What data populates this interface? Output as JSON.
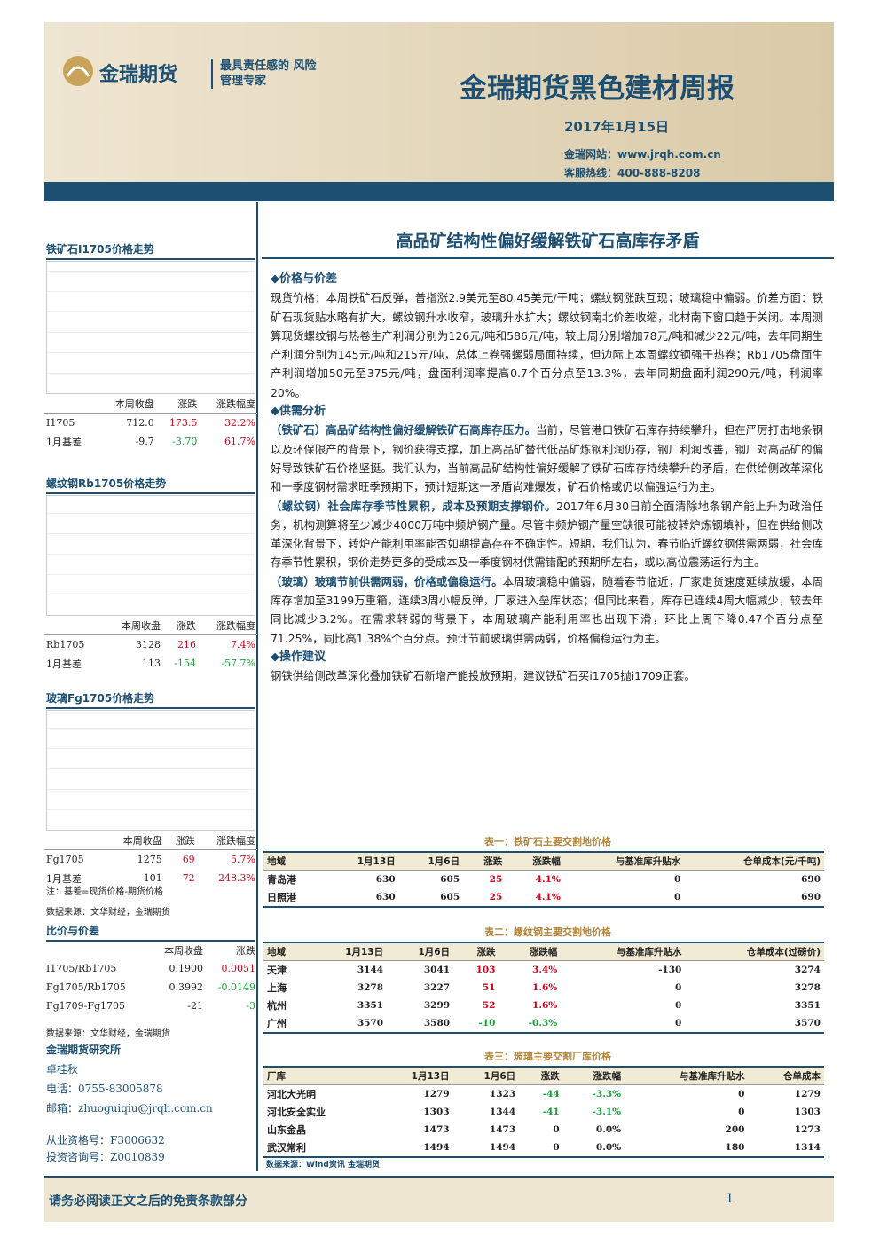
{
  "header": {
    "logo": "金瑞期货",
    "slogan": "最具责任感的 风险管理专家",
    "title": "金瑞期货黑色建材周报",
    "date": "2017年1月15日",
    "website": "金瑞网站：www.jrqh.com.cn",
    "hotline": "客服热线：400-888-8208"
  },
  "sidebar": {
    "panels": [
      {
        "title": "铁矿石I1705价格走势",
        "header": [
          "本周收盘",
          "涨跌",
          "涨跌幅度"
        ],
        "rows": [
          [
            "I1705",
            "712.0",
            "173.5",
            "32.2%"
          ],
          [
            "1月基差",
            "-9.7",
            "-3.70",
            "61.7%"
          ]
        ]
      },
      {
        "title": "螺纹钢Rb1705价格走势",
        "header": [
          "本周收盘",
          "涨跌",
          "涨跌幅度"
        ],
        "rows": [
          [
            "Rb1705",
            "3128",
            "216",
            "7.4%"
          ],
          [
            "1月基差",
            "113",
            "-154",
            "-57.7%"
          ]
        ]
      },
      {
        "title": "玻璃Fg1705价格走势",
        "header": [
          "本周收盘",
          "涨跌",
          "涨跌幅度"
        ],
        "rows": [
          [
            "Fg1705",
            "1275",
            "69",
            "5.7%"
          ],
          [
            "1月基差",
            "101",
            "72",
            "248.3%"
          ]
        ]
      }
    ],
    "note": "注：基差=现货价格-期货价格",
    "source": "数据来源：文华财经，金瑞期货",
    "ratio": {
      "title": "比价与价差",
      "header": [
        "本周收盘",
        "涨跌"
      ],
      "rows": [
        [
          "I1705/Rb1705",
          "0.1900",
          "0.0051"
        ],
        [
          "Fg1705/Rb1705",
          "0.3992",
          "-0.0149"
        ],
        [
          "Fg1709-Fg1705",
          "-21",
          "-3"
        ]
      ],
      "source": "数据来源：文华财经，金瑞期货"
    },
    "contact": {
      "institute": "金瑞期货研究所",
      "name": "卓桂秋",
      "phone": "电话：0755-83005878",
      "email": "邮箱：zhuoguiqiu@jrqh.com.cn",
      "qualification": "从业资格号：F3006632",
      "advisory": "投资咨询号：Z0010839"
    }
  },
  "article": {
    "title": "高品矿结构性偏好缓解铁矿石高库存矛盾",
    "sections": [
      {
        "heading": "◆价格与价差",
        "paragraphs": [
          {
            "text": "现货价格：本周铁矿石反弹，普指涨2.9美元至80.45美元/干吨；螺纹钢涨跌互现；玻璃稳中偏弱。价差方面：铁矿石现货贴水略有扩大，螺纹钢升水收窄，玻璃升水扩大；螺纹钢南北价差收缩，北材南下窗口趋于关闭。本周测算现货螺纹钢与热卷生产利润分别为126元/吨和586元/吨，较上周分别增加78元/吨和减少22元/吨，去年同期生产利润分别为145元/吨和215元/吨，总体上卷强螺弱局面持续，但边际上本周螺纹钢强于热卷；Rb1705盘面生产利润增加50元至375元/吨，盘面利润率提高0.7个百分点至13.3%，去年同期盘面利润290元/吨，利润率20%。"
          }
        ]
      },
      {
        "heading": "◆供需分析",
        "paragraphs": [
          {
            "lead": "（铁矿石）高品矿结构性偏好缓解铁矿石高库存压力。",
            "text": "当前，尽管港口铁矿石库存持续攀升，但在严厉打击地条钢以及环保限产的背景下，钢价获得支撑，加上高品矿替代低品矿炼钢利润仍存，钢厂利润改善，钢厂对高品矿的偏好导致铁矿石价格坚挺。我们认为，当前高品矿结构性偏好缓解了铁矿石库存持续攀升的矛盾，在供给侧改革深化和一季度钢材需求旺季预期下，预计短期这一矛盾尚难爆发，矿石价格或仍以偏强运行为主。"
          },
          {
            "lead": "（螺纹钢）社会库存季节性累积，成本及预期支撑钢价。",
            "text": "2017年6月30日前全面清除地条钢产能上升为政治任务，机构测算将至少减少4000万吨中频炉钢产量。尽管中频炉钢产量空缺很可能被转炉炼钢填补，但在供给侧改革深化背景下，转炉产能利用率能否如期提高存在不确定性。短期，我们认为，春节临近螺纹钢供需两弱，社会库存季节性累积，钢价走势更多的受成本及一季度钢材供需错配的预期所左右，或以高位震荡运行为主。"
          },
          {
            "lead": "（玻璃）玻璃节前供需两弱，价格或偏稳运行。",
            "text": "本周玻璃稳中偏弱，随着春节临近，厂家走货速度延续放缓，本周库存增加至3199万重箱，连续3周小幅反弹，厂家进入垒库状态；但同比来看，库存已连续4周大幅减少，较去年同比减少3.2%。在需求转弱的背景下，本周玻璃产能利用率也出现下滑，环比上周下降0.47个百分点至71.25%，同比高1.38%个百分点。预计节前玻璃供需两弱，价格偏稳运行为主。"
          }
        ]
      },
      {
        "heading": "◆操作建议",
        "paragraphs": [
          {
            "text": "钢铁供给侧改革深化叠加铁矿石新增产能投放预期，建议铁矿石买i1705抛i1709正套。"
          }
        ]
      }
    ]
  },
  "tables": [
    {
      "caption": "表一：铁矿石主要交割地价格",
      "header": [
        "地域",
        "1月13日",
        "1月6日",
        "涨跌",
        "涨跌幅",
        "与基准库升贴水",
        "仓单成本(元/千吨)"
      ],
      "rows": [
        [
          "青岛港",
          "630",
          "605",
          "25",
          "4.1%",
          "0",
          "690"
        ],
        [
          "日照港",
          "630",
          "605",
          "25",
          "4.1%",
          "0",
          "690"
        ]
      ]
    },
    {
      "caption": "表二：螺纹钢主要交割地价格",
      "header": [
        "地域",
        "1月13日",
        "1月6日",
        "涨跌",
        "涨跌幅",
        "与基准库升贴水",
        "仓单成本(过磅价)"
      ],
      "rows": [
        [
          "天津",
          "3144",
          "3041",
          "103",
          "3.4%",
          "-130",
          "3274"
        ],
        [
          "上海",
          "3278",
          "3227",
          "51",
          "1.6%",
          "0",
          "3278"
        ],
        [
          "杭州",
          "3351",
          "3299",
          "52",
          "1.6%",
          "0",
          "3351"
        ],
        [
          "广州",
          "3570",
          "3580",
          "-10",
          "-0.3%",
          "0",
          "3570"
        ]
      ]
    },
    {
      "caption": "表三：玻璃主要交割厂库价格",
      "header": [
        "厂库",
        "1月13日",
        "1月6日",
        "涨跌",
        "涨跌幅",
        "与基准库升贴水",
        "仓单成本"
      ],
      "rows": [
        [
          "河北大光明",
          "1279",
          "1323",
          "-44",
          "-3.3%",
          "0",
          "1279"
        ],
        [
          "河北安全实业",
          "1303",
          "1344",
          "-41",
          "-3.1%",
          "0",
          "1303"
        ],
        [
          "山东金晶",
          "1473",
          "1473",
          "0",
          "0.0%",
          "200",
          "1273"
        ],
        [
          "武汉常利",
          "1494",
          "1494",
          "0",
          "0.0%",
          "180",
          "1314"
        ]
      ],
      "source": "数据来源：Wind资讯  金瑞期货"
    }
  ],
  "footer": {
    "disclaimer": "请务必阅读正文之后的免责条款部分",
    "page": "1"
  }
}
